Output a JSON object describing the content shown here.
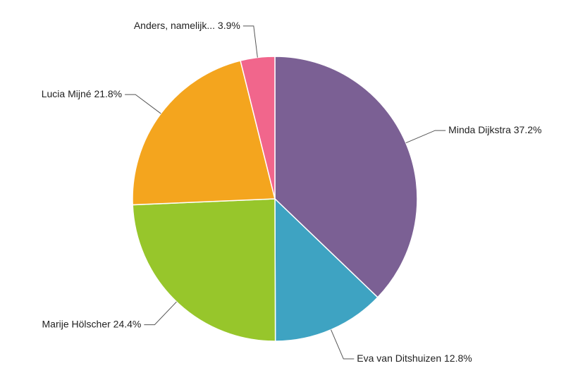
{
  "chart_data": {
    "type": "pie",
    "categories": [
      "Minda Dijkstra",
      "Eva van Ditshuizen",
      "Marije Hölscher",
      "Lucia Mijné",
      "Anders, namelijk..."
    ],
    "values": [
      37.2,
      12.8,
      24.4,
      21.8,
      3.9
    ],
    "value_labels": [
      "37.2%",
      "12.8%",
      "24.4%",
      "21.8%",
      "3.9%"
    ],
    "colors": [
      "#7b6094",
      "#3ea3c2",
      "#97c62b",
      "#f4a51e",
      "#f1668c"
    ]
  }
}
